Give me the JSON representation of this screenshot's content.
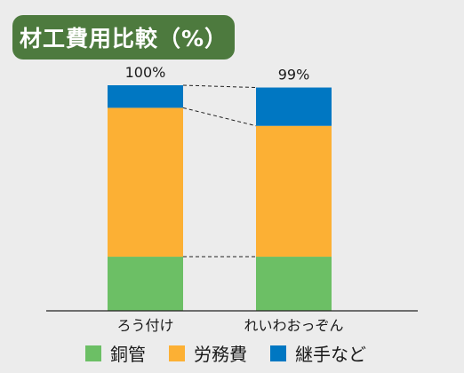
{
  "chart_data": {
    "type": "bar",
    "stacked": true,
    "title": "材工費用比較（%）",
    "categories": [
      "ろう付け",
      "れいわおっぞん"
    ],
    "totals_labels": [
      "100%",
      "99%"
    ],
    "ylim": [
      0,
      100
    ],
    "series": [
      {
        "name": "銅管",
        "color": "#6cbf65",
        "values": [
          24,
          24
        ]
      },
      {
        "name": "労務費",
        "color": "#fcb034",
        "values": [
          66,
          58
        ]
      },
      {
        "name": "継手など",
        "color": "#0077c2",
        "values": [
          10,
          17
        ]
      }
    ],
    "connector_lines": "dashed",
    "legend_position": "bottom"
  }
}
